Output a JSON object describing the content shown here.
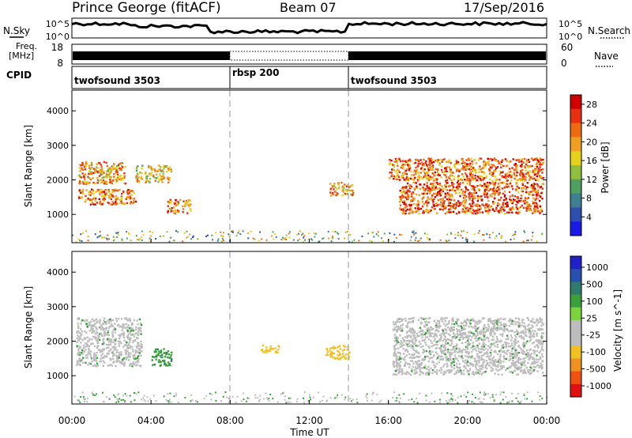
{
  "header": {
    "station": "Prince George (fitACF)",
    "beam": "Beam 07",
    "date": "17/Sep/2016"
  },
  "top_panels": {
    "nsky_label": "N.Sky",
    "nsky_tick_high": "10^5",
    "nsky_tick_low": "10^0",
    "nsearch_label": "N.Search",
    "freq_label_1": "Freq.",
    "freq_label_2": "[MHz]",
    "freq_tick_high": "18",
    "freq_tick_low": "8",
    "nave_tick_high": "60",
    "nave_tick_low": "0",
    "nave_label": "Nave",
    "cpid_label": "CPID",
    "cpid_segments": [
      {
        "name": "twofsound 3503",
        "start_hour": 0,
        "end_hour": 8
      },
      {
        "name": "rbsp 200",
        "start_hour": 8,
        "end_hour": 14
      },
      {
        "name": "twofsound 3503",
        "start_hour": 14,
        "end_hour": 24
      }
    ]
  },
  "chart_data": [
    {
      "type": "heatmap",
      "title": "",
      "xlabel": "Time UT",
      "ylabel": "Slant Range [km]",
      "x_ticks": [
        "00:00",
        "04:00",
        "08:00",
        "12:00",
        "16:00",
        "20:00",
        "00:00"
      ],
      "xlim_hours": [
        0,
        24
      ],
      "y_ticks": [
        1000,
        2000,
        3000,
        4000
      ],
      "ylim": [
        180,
        4600
      ],
      "colorbar": {
        "label": "Power [dB]",
        "ticks": [
          4,
          8,
          12,
          16,
          20,
          24,
          28
        ],
        "range": [
          0,
          30
        ],
        "colors": [
          "#1a1ae6",
          "#2f4fb0",
          "#3f7f8f",
          "#4f9f5f",
          "#8fbf3f",
          "#e6d21a",
          "#f0a020",
          "#f06a10",
          "#e83010",
          "#d00000"
        ]
      },
      "echo_regions": [
        {
          "range_km_start": 1900,
          "range_km_end": 2550,
          "hour_start": 0.3,
          "hour_end": 2.7,
          "level": 20
        },
        {
          "range_km_start": 1300,
          "range_km_end": 1750,
          "hour_start": 0.3,
          "hour_end": 3.2,
          "level": 22
        },
        {
          "range_km_start": 1950,
          "range_km_end": 2450,
          "hour_start": 3.2,
          "hour_end": 5.0,
          "level": 17
        },
        {
          "range_km_start": 1050,
          "range_km_end": 1450,
          "hour_start": 4.8,
          "hour_end": 6.0,
          "level": 21
        },
        {
          "range_km_start": 1550,
          "range_km_end": 1950,
          "hour_start": 13.0,
          "hour_end": 14.2,
          "level": 20
        },
        {
          "range_km_start": 2000,
          "range_km_end": 2650,
          "hour_start": 16.0,
          "hour_end": 23.8,
          "level": 22
        },
        {
          "range_km_start": 1050,
          "range_km_end": 1950,
          "hour_start": 16.5,
          "hour_end": 23.8,
          "level": 24
        }
      ]
    },
    {
      "type": "heatmap",
      "title": "",
      "xlabel": "Time UT",
      "ylabel": "Slant Range [km]",
      "x_ticks": [
        "00:00",
        "04:00",
        "08:00",
        "12:00",
        "16:00",
        "20:00",
        "00:00"
      ],
      "xlim_hours": [
        0,
        24
      ],
      "y_ticks": [
        1000,
        2000,
        3000,
        4000
      ],
      "ylim": [
        180,
        4600
      ],
      "colorbar": {
        "label": "Velocity [m s^-1]",
        "ticks": [
          "1000",
          "500",
          "100",
          "25",
          "-25",
          "-100",
          "-500",
          "-1000"
        ],
        "range": [
          -1000,
          1000
        ],
        "colors": [
          "#2020c8",
          "#2850b0",
          "#2f7a6a",
          "#3aa03a",
          "#7cd43c",
          "#bdbdbd",
          "#bdbdbd",
          "#f0c020",
          "#f09020",
          "#f05010",
          "#e01010"
        ]
      },
      "echo_regions": [
        {
          "range_km_start": 1300,
          "range_km_end": 2700,
          "hour_start": 0.2,
          "hour_end": 3.5,
          "level": 0
        },
        {
          "range_km_start": 1300,
          "range_km_end": 1800,
          "hour_start": 4.0,
          "hour_end": 5.0,
          "level": 80
        },
        {
          "range_km_start": 1700,
          "range_km_end": 1900,
          "hour_start": 9.5,
          "hour_end": 10.5,
          "level": -200
        },
        {
          "range_km_start": 1500,
          "range_km_end": 1900,
          "hour_start": 12.8,
          "hour_end": 14.0,
          "level": -200
        },
        {
          "range_km_start": 1050,
          "range_km_end": 2700,
          "hour_start": 16.2,
          "hour_end": 23.8,
          "level": 0
        }
      ]
    }
  ]
}
